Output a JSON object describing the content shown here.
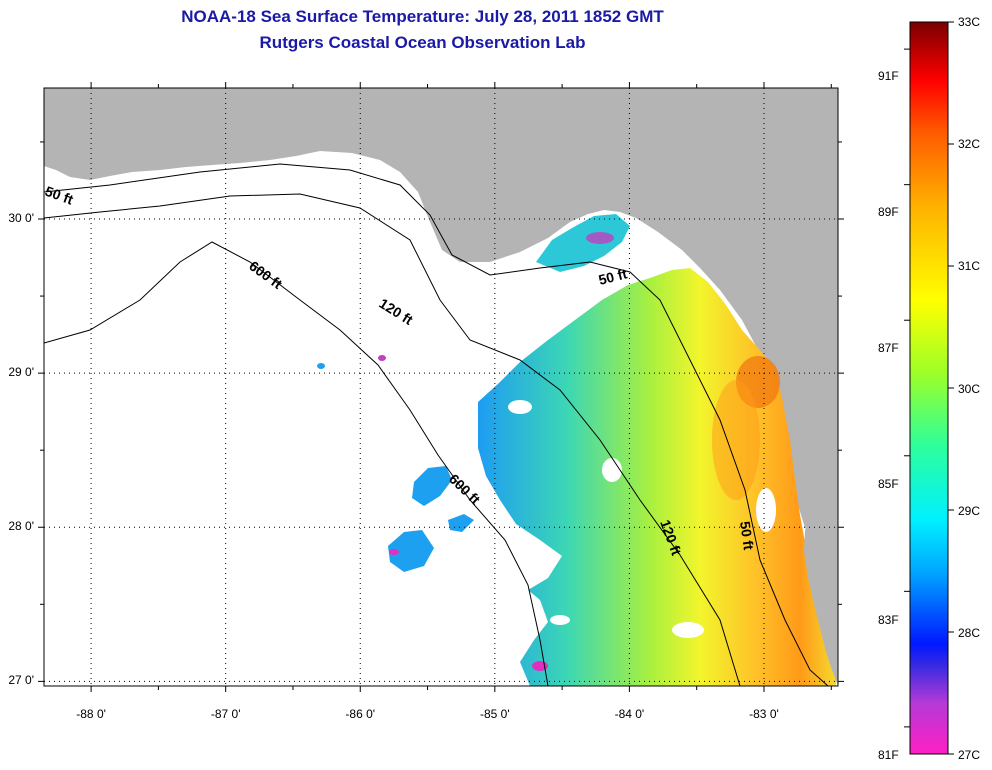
{
  "title": {
    "line1": "NOAA-18 Sea Surface Temperature:  July 28, 2011 1852 GMT",
    "line2": "Rutgers Coastal Ocean Observation Lab"
  },
  "map": {
    "lon_range": [
      -88.35,
      -82.45
    ],
    "lat_range": [
      26.97,
      30.85
    ],
    "lat_ticks": [
      {
        "value": 30,
        "label": "30 0'"
      },
      {
        "value": 29,
        "label": "29 0'"
      },
      {
        "value": 28,
        "label": "28 0'"
      },
      {
        "value": 27,
        "label": "27 0'"
      }
    ],
    "lon_ticks": [
      {
        "value": -88,
        "label": "-88 0'"
      },
      {
        "value": -87,
        "label": "-87 0'"
      },
      {
        "value": -86,
        "label": "-86 0'"
      },
      {
        "value": -85,
        "label": "-85 0'"
      },
      {
        "value": -84,
        "label": "-84 0'"
      },
      {
        "value": -83,
        "label": "-83 0'"
      }
    ],
    "contour_labels": [
      {
        "text": "50 ft"
      },
      {
        "text": "600 ft"
      },
      {
        "text": "120 ft"
      },
      {
        "text": "50 ft"
      },
      {
        "text": "600 ft"
      },
      {
        "text": "120 ft"
      },
      {
        "text": "50 ft"
      }
    ],
    "colors": {
      "land": "#b4b4b4",
      "ocean_nodata": "#ffffff",
      "contour": "#000000",
      "grid": "#000000"
    }
  },
  "colorbar": {
    "range_c": [
      27,
      33
    ],
    "celsius_labels": [
      "33C",
      "32C",
      "31C",
      "30C",
      "29C",
      "28C",
      "27C"
    ],
    "fahrenheit_labels": [
      "91F",
      "89F",
      "87F",
      "85F",
      "83F",
      "81F"
    ],
    "colors": [
      "#ff1fc4",
      "#7a2ad8",
      "#0018ff",
      "#00a8ff",
      "#00f0ff",
      "#2cff9c",
      "#9cff28",
      "#ffff00",
      "#ffb000",
      "#ff5a00",
      "#ff0000",
      "#7a0000"
    ]
  }
}
